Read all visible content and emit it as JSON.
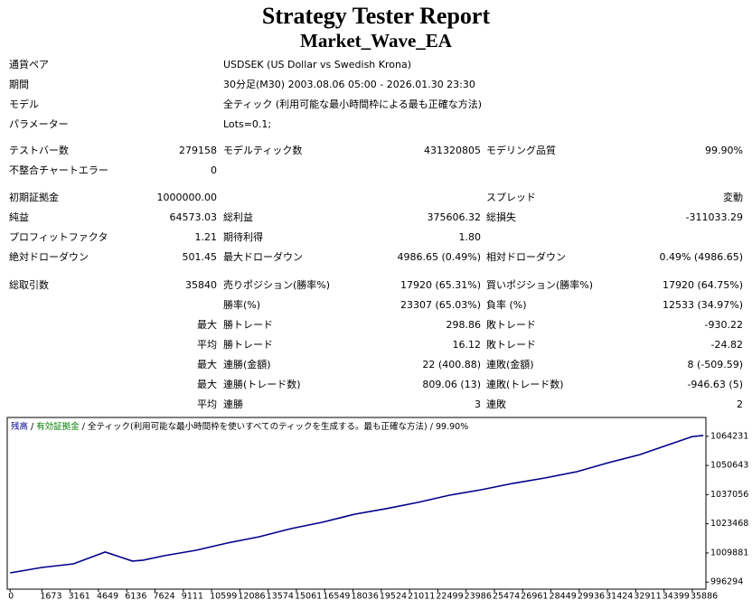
{
  "header": {
    "title": "Strategy Tester Report",
    "subtitle": "Market_Wave_EA"
  },
  "info": [
    {
      "label": "通貨ペア",
      "value": "USDSEK (US Dollar vs Swedish Krona)"
    },
    {
      "label": "期間",
      "value": "30分足(M30) 2003.08.06 05:00 - 2026.01.30 23:30"
    },
    {
      "label": "モデル",
      "value": "全ティック (利用可能な最小時間枠による最も正確な方法)"
    },
    {
      "label": "パラメーター",
      "value": "Lots=0.1;"
    }
  ],
  "rows": [
    [
      "テストバー数",
      "279158",
      "モデルティック数",
      "431320805",
      "モデリング品質",
      "99.90%"
    ],
    [
      "不整合チャートエラー",
      "0",
      null,
      null,
      null,
      null
    ],
    [
      "初期証拠金",
      "1000000.00",
      null,
      null,
      "スプレッド",
      "変動"
    ],
    [
      "純益",
      "64573.03",
      "総利益",
      "375606.32",
      "総損失",
      "-311033.29"
    ],
    [
      "プロフィットファクタ",
      "1.21",
      "期待利得",
      "1.80",
      null,
      null
    ],
    [
      "絶対ドローダウン",
      "501.45",
      "最大ドローダウン",
      "4986.65 (0.49%)",
      "相対ドローダウン",
      "0.49% (4986.65)"
    ],
    [
      "総取引数",
      "35840",
      "売りポジション(勝率%)",
      "17920 (65.31%)",
      "買いポジション(勝率%)",
      "17920 (64.75%)"
    ],
    [
      null,
      null,
      "勝率(%)",
      "23307 (65.03%)",
      "負率 (%)",
      "12533 (34.97%)"
    ],
    [
      null,
      "最大",
      "勝トレード",
      "298.86",
      "敗トレード",
      "-930.22"
    ],
    [
      null,
      "平均",
      "勝トレード",
      "16.12",
      "敗トレード",
      "-24.82"
    ],
    [
      null,
      "最大",
      "連勝(金額)",
      "22 (400.88)",
      "連敗(金額)",
      "8 (-509.59)"
    ],
    [
      null,
      "最大",
      "連勝(トレード数)",
      "809.06 (13)",
      "連敗(トレード数)",
      "-946.63 (5)"
    ],
    [
      null,
      "平均",
      "連勝",
      "3",
      "連敗",
      "2"
    ]
  ],
  "chart_data": {
    "type": "line",
    "legend": [
      {
        "text": "残高",
        "color": "#00008b"
      },
      {
        "text": "有効証拠金",
        "color": "#008000"
      },
      {
        "text": "全ティック(利用可能な最小時間枠を使いすべてのティックを生成する。最も正確な方法)",
        "color": "#000000"
      },
      {
        "text": "99.90%",
        "color": "#000000"
      }
    ],
    "legend_separator": " / ",
    "x": [
      0,
      1668,
      3336,
      5005,
      6435,
      7000,
      8103,
      9771,
      11440,
      13108,
      14776,
      16444,
      18113,
      19781,
      21449,
      23117,
      24786,
      26454,
      28122,
      29790,
      31459,
      33127,
      34795,
      35890,
      36463
    ],
    "series": [
      {
        "name": "残高",
        "color": "#00008b",
        "values": [
          1000600,
          1003100,
          1004800,
          1010300,
          1006100,
          1006500,
          1008600,
          1011100,
          1014500,
          1017400,
          1021200,
          1024200,
          1027900,
          1030500,
          1033400,
          1036800,
          1039300,
          1042300,
          1044800,
          1047700,
          1051900,
          1055700,
          1060800,
          1064100,
          1064600
        ]
      }
    ],
    "xlim": [
      -150,
      36600
    ],
    "ylim": [
      993000,
      1073000
    ],
    "xticks": [
      0,
      1673,
      3161,
      4649,
      6136,
      7624,
      9111,
      10599,
      12086,
      13574,
      15061,
      16549,
      18036,
      19524,
      21011,
      22499,
      23986,
      25474,
      26961,
      28449,
      29936,
      31424,
      32911,
      34399,
      35886
    ],
    "yticks": [
      996294,
      1009881,
      1023468,
      1037056,
      1050643,
      1064231
    ]
  }
}
